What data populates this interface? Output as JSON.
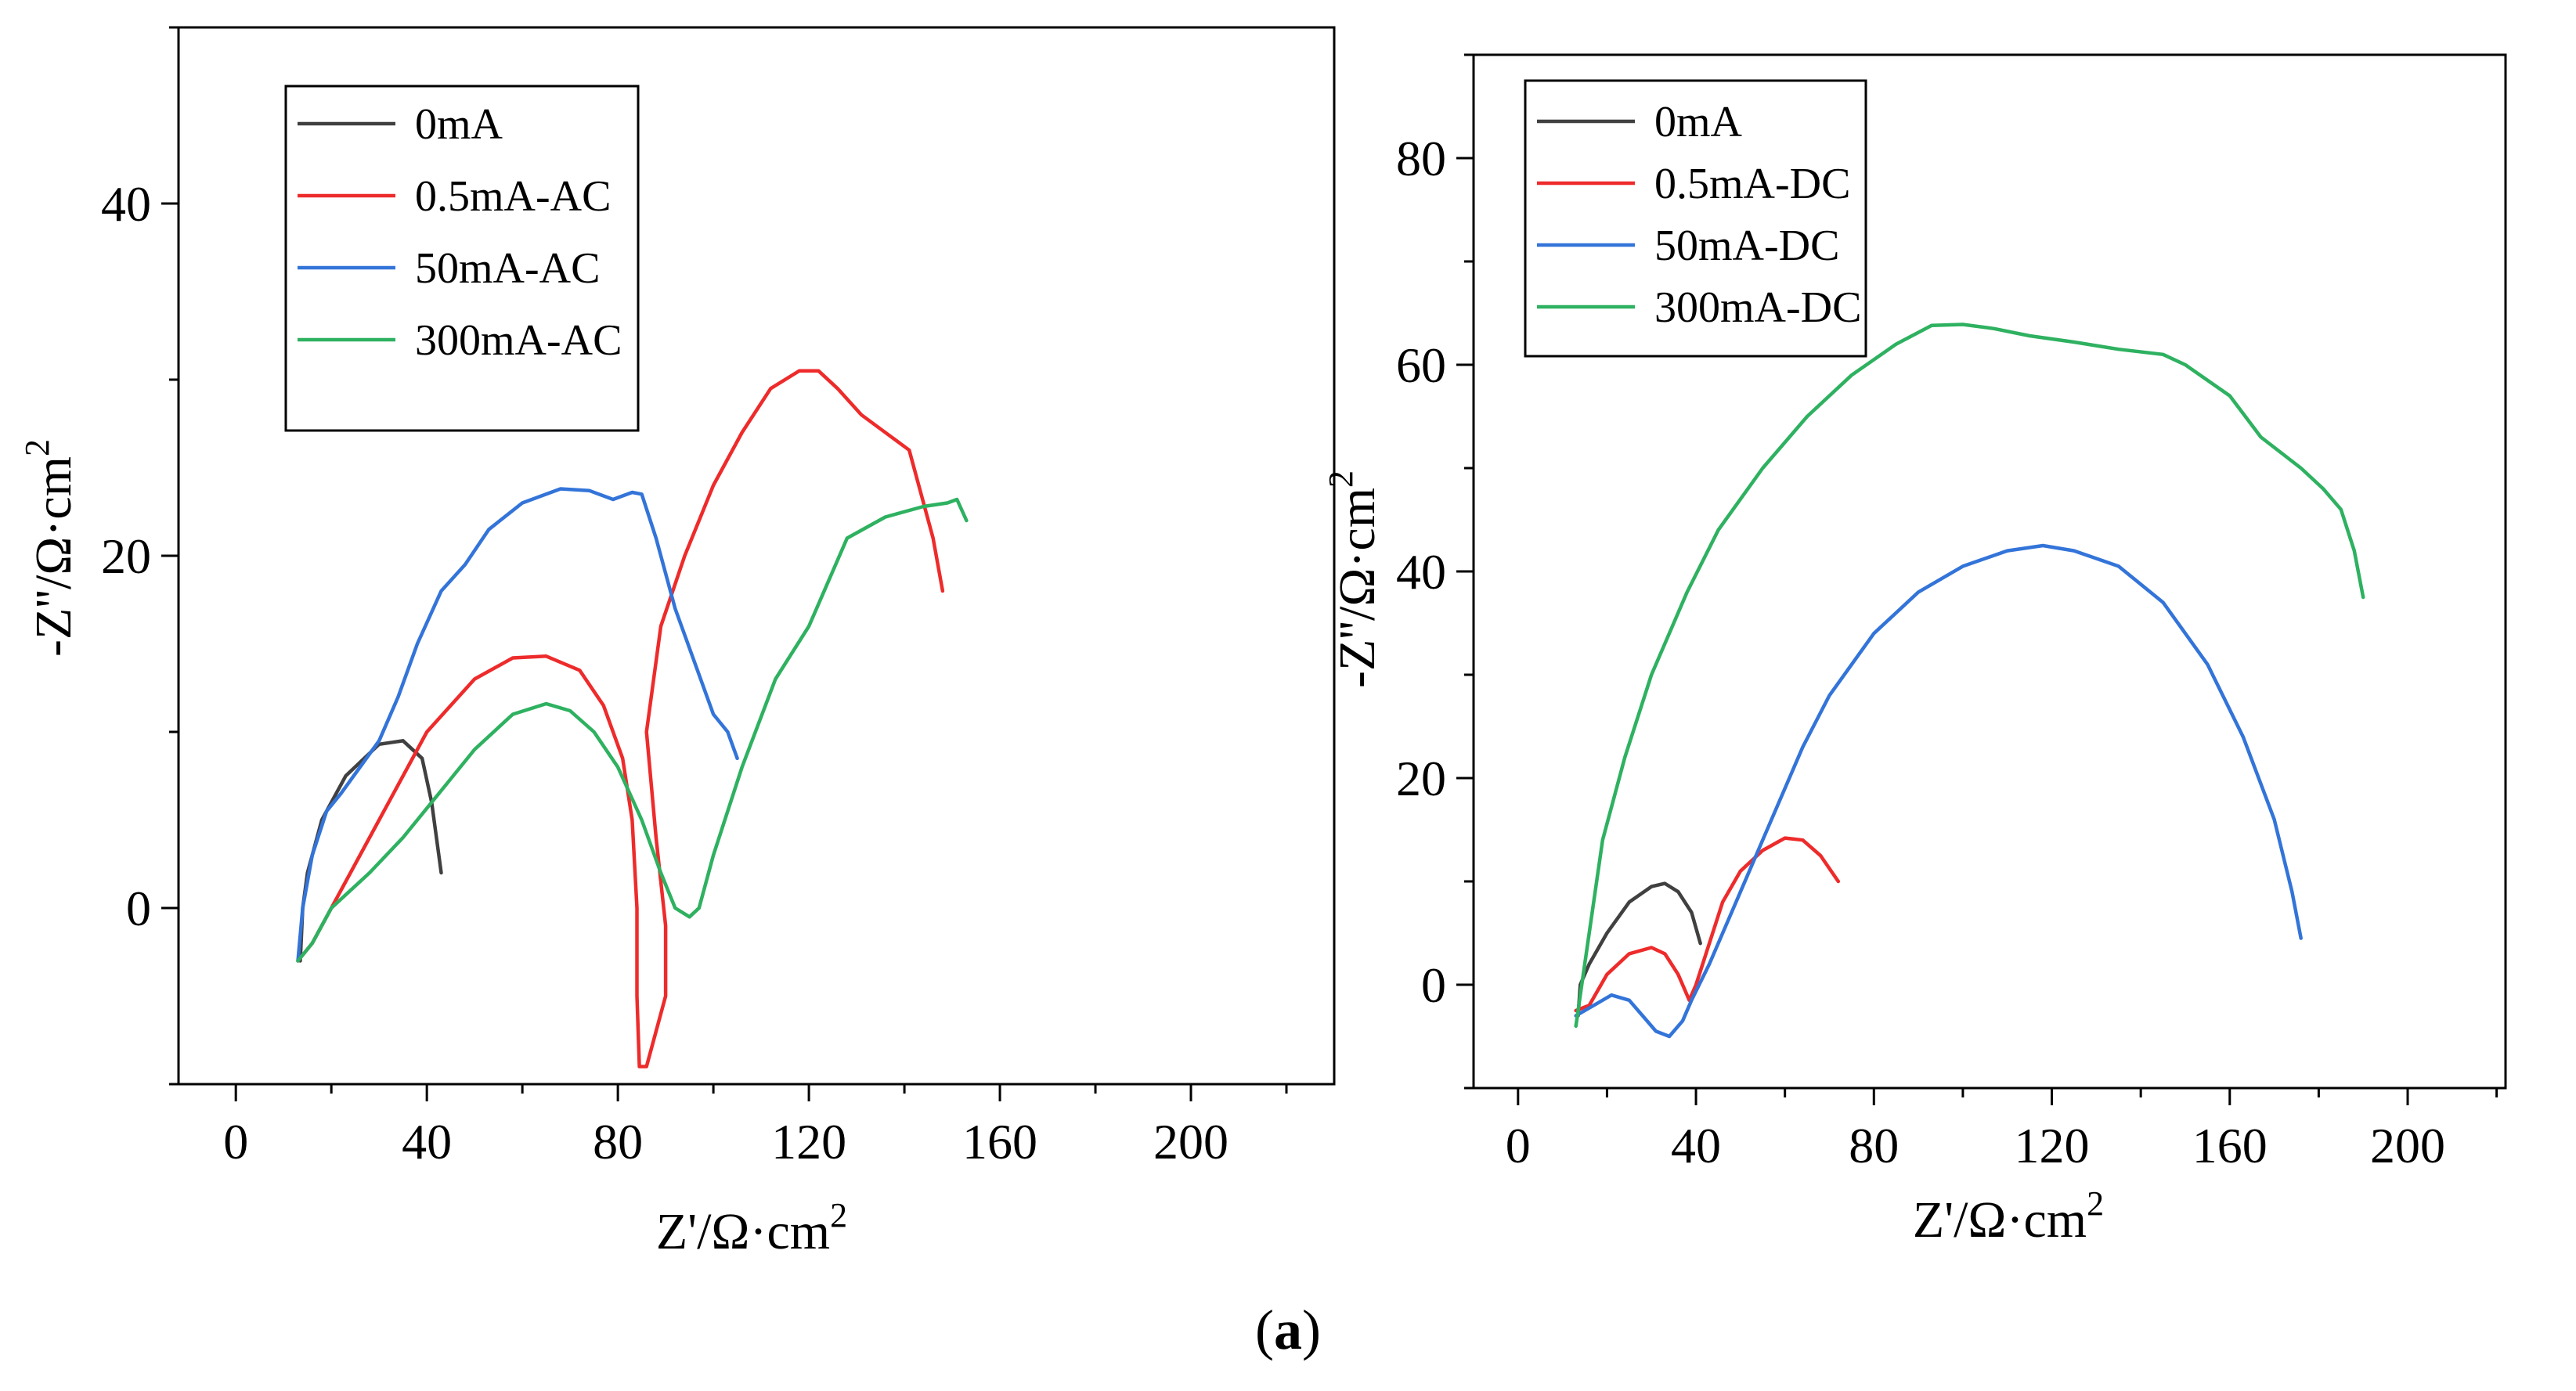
{
  "caption": {
    "open": "(",
    "label": "a",
    "close": ")"
  },
  "chart_data": [
    {
      "type": "line",
      "title": "",
      "xlabel": "Z'/Ω·cm",
      "xlabel_sup": "2",
      "ylabel": "-Z''/Ω·cm",
      "ylabel_sup": "2",
      "xlim": [
        -12,
        230
      ],
      "ylim": [
        -10,
        50
      ],
      "xticks": [
        0,
        40,
        80,
        120,
        160,
        200
      ],
      "yticks": [
        0,
        20,
        40
      ],
      "legend_position": "top-left",
      "series": [
        {
          "name": "0mA",
          "color": "#404040",
          "points": [
            [
              13.5,
              -3
            ],
            [
              14,
              0
            ],
            [
              15,
              2
            ],
            [
              18,
              5
            ],
            [
              23,
              7.5
            ],
            [
              30,
              9.3
            ],
            [
              35,
              9.5
            ],
            [
              39,
              8.5
            ],
            [
              41,
              6
            ],
            [
              43,
              2
            ]
          ]
        },
        {
          "name": "0.5mA-AC",
          "color": "#ee2b2b",
          "points": [
            [
              13,
              -3
            ],
            [
              16,
              -2
            ],
            [
              22,
              1
            ],
            [
              30,
              5
            ],
            [
              40,
              10
            ],
            [
              50,
              13
            ],
            [
              58,
              14.2
            ],
            [
              65,
              14.3
            ],
            [
              72,
              13.5
            ],
            [
              77,
              11.5
            ],
            [
              81,
              8.5
            ],
            [
              83,
              5
            ],
            [
              84,
              0
            ],
            [
              84,
              -5
            ],
            [
              84.5,
              -9
            ],
            [
              86,
              -9
            ],
            [
              88,
              -7
            ],
            [
              90,
              -5
            ],
            [
              90,
              -1
            ],
            [
              88,
              4
            ],
            [
              86,
              10
            ],
            [
              89,
              16
            ],
            [
              94,
              20
            ],
            [
              100,
              24
            ],
            [
              106,
              27
            ],
            [
              112,
              29.5
            ],
            [
              118,
              30.5
            ],
            [
              122,
              30.5
            ],
            [
              126,
              29.5
            ],
            [
              131,
              28
            ],
            [
              136,
              27
            ],
            [
              141,
              26
            ],
            [
              144,
              23
            ],
            [
              146,
              21
            ],
            [
              148,
              18
            ]
          ]
        },
        {
          "name": "50mA-AC",
          "color": "#3374d9",
          "points": [
            [
              13,
              -3
            ],
            [
              14,
              0
            ],
            [
              16,
              3
            ],
            [
              19,
              5.5
            ],
            [
              22,
              6.5
            ],
            [
              26,
              8
            ],
            [
              30,
              9.5
            ],
            [
              34,
              12
            ],
            [
              38,
              15
            ],
            [
              43,
              18
            ],
            [
              48,
              19.5
            ],
            [
              53,
              21.5
            ],
            [
              60,
              23
            ],
            [
              68,
              23.8
            ],
            [
              74,
              23.7
            ],
            [
              79,
              23.2
            ],
            [
              83,
              23.6
            ],
            [
              85,
              23.5
            ],
            [
              88,
              21
            ],
            [
              92,
              17
            ],
            [
              96,
              14
            ],
            [
              100,
              11
            ],
            [
              103,
              10
            ],
            [
              105,
              8.5
            ]
          ]
        },
        {
          "name": "300mA-AC",
          "color": "#2eb160",
          "points": [
            [
              13,
              -3
            ],
            [
              16,
              -2
            ],
            [
              20,
              0
            ],
            [
              28,
              2
            ],
            [
              35,
              4
            ],
            [
              44,
              7
            ],
            [
              50,
              9
            ],
            [
              58,
              11
            ],
            [
              65,
              11.6
            ],
            [
              70,
              11.2
            ],
            [
              75,
              10
            ],
            [
              80,
              8
            ],
            [
              85,
              5
            ],
            [
              89,
              2
            ],
            [
              92,
              0
            ],
            [
              95,
              -0.5
            ],
            [
              97,
              0
            ],
            [
              100,
              3
            ],
            [
              106,
              8
            ],
            [
              113,
              13
            ],
            [
              120,
              16
            ],
            [
              128,
              21
            ],
            [
              136,
              22.2
            ],
            [
              144,
              22.8
            ],
            [
              149,
              23
            ],
            [
              151,
              23.2
            ],
            [
              153,
              22
            ]
          ]
        }
      ]
    },
    {
      "type": "line",
      "title": "",
      "xlabel": "Z'/Ω·cm",
      "xlabel_sup": "2",
      "ylabel": "-Z''/Ω·cm",
      "ylabel_sup": "2",
      "xlim": [
        -10,
        222
      ],
      "ylim": [
        -10,
        90
      ],
      "xticks": [
        0,
        40,
        80,
        120,
        160,
        200
      ],
      "yticks": [
        0,
        20,
        40,
        60,
        80
      ],
      "legend_position": "top-left",
      "series": [
        {
          "name": "0mA",
          "color": "#404040",
          "points": [
            [
              13.5,
              -3
            ],
            [
              14,
              0
            ],
            [
              16,
              2
            ],
            [
              20,
              5
            ],
            [
              25,
              8
            ],
            [
              30,
              9.5
            ],
            [
              33,
              9.8
            ],
            [
              36,
              9
            ],
            [
              39,
              7
            ],
            [
              41,
              4
            ]
          ]
        },
        {
          "name": "0.5mA-DC",
          "color": "#ee2b2b",
          "points": [
            [
              13,
              -2.5
            ],
            [
              16,
              -2
            ],
            [
              20,
              1
            ],
            [
              25,
              3
            ],
            [
              30,
              3.6
            ],
            [
              33,
              3
            ],
            [
              36,
              1
            ],
            [
              38.5,
              -1.5
            ],
            [
              40,
              0
            ],
            [
              43,
              4
            ],
            [
              46,
              8
            ],
            [
              50,
              11
            ],
            [
              55,
              13
            ],
            [
              60,
              14.2
            ],
            [
              64,
              14
            ],
            [
              68,
              12.5
            ],
            [
              72,
              10
            ]
          ]
        },
        {
          "name": "50mA-DC",
          "color": "#3374d9",
          "points": [
            [
              13,
              -3
            ],
            [
              17,
              -2
            ],
            [
              21,
              -1
            ],
            [
              25,
              -1.5
            ],
            [
              28,
              -3
            ],
            [
              31,
              -4.5
            ],
            [
              34,
              -5
            ],
            [
              37,
              -3.5
            ],
            [
              39,
              -1.5
            ],
            [
              43,
              2
            ],
            [
              50,
              9
            ],
            [
              56,
              15
            ],
            [
              64,
              23
            ],
            [
              70,
              28
            ],
            [
              80,
              34
            ],
            [
              90,
              38
            ],
            [
              100,
              40.5
            ],
            [
              110,
              42
            ],
            [
              118,
              42.5
            ],
            [
              125,
              42
            ],
            [
              135,
              40.5
            ],
            [
              145,
              37
            ],
            [
              155,
              31
            ],
            [
              163,
              24
            ],
            [
              170,
              16
            ],
            [
              174,
              9
            ],
            [
              176,
              4.5
            ]
          ]
        },
        {
          "name": "300mA-DC",
          "color": "#2eb160",
          "points": [
            [
              13,
              -4
            ],
            [
              14,
              -1
            ],
            [
              16,
              5
            ],
            [
              19,
              14
            ],
            [
              24,
              22
            ],
            [
              30,
              30
            ],
            [
              38,
              38
            ],
            [
              45,
              44
            ],
            [
              55,
              50
            ],
            [
              65,
              55
            ],
            [
              75,
              59
            ],
            [
              85,
              62
            ],
            [
              93,
              63.8
            ],
            [
              100,
              63.9
            ],
            [
              107,
              63.5
            ],
            [
              115,
              62.8
            ],
            [
              125,
              62.2
            ],
            [
              135,
              61.5
            ],
            [
              145,
              61
            ],
            [
              150,
              60
            ],
            [
              160,
              57
            ],
            [
              167,
              53
            ],
            [
              176,
              50
            ],
            [
              181,
              48
            ],
            [
              185,
              46
            ],
            [
              188,
              42
            ],
            [
              190,
              37.5
            ]
          ]
        }
      ]
    }
  ]
}
